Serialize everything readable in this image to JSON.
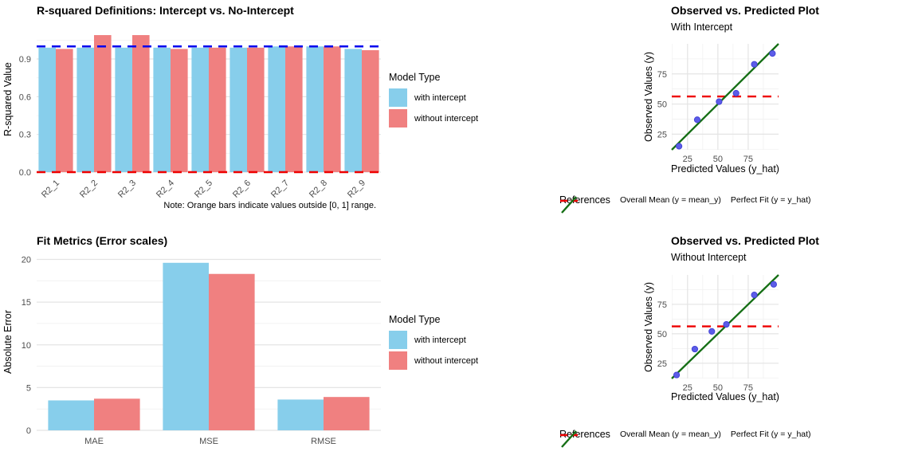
{
  "colors": {
    "with_intercept": "#87CEEB",
    "without_intercept": "#F08080",
    "ref_blue": "#0000EE",
    "ref_red": "#EE0000",
    "perfect_fit_green": "#146E14",
    "point_fill": "#5C5CE8",
    "point_stroke": "#4343D6",
    "grid_major": "#E4E4E4",
    "grid_minor": "#F1F1F1",
    "tick_text": "#4D4D4D"
  },
  "chart_data": [
    {
      "type": "bar",
      "title": "R-squared Definitions: Intercept vs. No-Intercept",
      "ylabel": "R-squared Value",
      "categories": [
        "R2_1",
        "R2_2",
        "R2_3",
        "R2_4",
        "R2_5",
        "R2_6",
        "R2_7",
        "R2_8",
        "R2_9"
      ],
      "series": [
        {
          "name": "with intercept",
          "color": "with_intercept",
          "values": [
            0.99,
            0.99,
            0.99,
            0.99,
            0.99,
            0.99,
            1.0,
            1.0,
            0.98
          ]
        },
        {
          "name": "without intercept",
          "color": "without_intercept",
          "values": [
            0.98,
            1.09,
            1.09,
            0.98,
            0.99,
            0.99,
            1.0,
            1.0,
            0.97
          ]
        }
      ],
      "yticks": [
        0,
        0.3,
        0.6,
        0.9
      ],
      "ytick_labels": [
        "0.0",
        "0.3",
        "0.6",
        "0.9"
      ],
      "ylim": [
        0,
        1.16
      ],
      "dodge": 0.9,
      "ref_lines": [
        {
          "y": 1.0,
          "color": "ref_blue"
        },
        {
          "y": 0.0,
          "color": "ref_red"
        }
      ],
      "legend": {
        "title": "Model Type"
      },
      "note": "Note: Orange bars indicate values outside [0, 1] range.",
      "grid": true,
      "legend_position": "right"
    },
    {
      "type": "bar",
      "title": "Fit Metrics (Error scales)",
      "ylabel": "Absolute Error",
      "categories": [
        "MAE",
        "MSE",
        "RMSE"
      ],
      "series": [
        {
          "name": "with intercept",
          "color": "with_intercept",
          "values": [
            3.5,
            19.6,
            3.6
          ]
        },
        {
          "name": "without intercept",
          "color": "without_intercept",
          "values": [
            3.7,
            18.3,
            3.9
          ]
        }
      ],
      "yticks": [
        0,
        5,
        10,
        15,
        20
      ],
      "ytick_labels": [
        "0",
        "5",
        "10",
        "15",
        "20"
      ],
      "ylim": [
        0,
        20.7
      ],
      "dodge": 0.8,
      "ref_lines": [],
      "legend": {
        "title": "Model Type"
      },
      "grid": true,
      "legend_position": "right"
    },
    {
      "type": "scatter",
      "title": "Observed vs. Predicted Plot",
      "subtitle": "With Intercept",
      "xlabel": "Predicted Values (y_hat)",
      "ylabel": "Observed Values (y)",
      "points": [
        [
          18,
          15
        ],
        [
          33,
          37
        ],
        [
          51,
          52
        ],
        [
          65,
          59
        ],
        [
          80,
          83
        ],
        [
          95,
          92
        ]
      ],
      "mean_y": 56.3,
      "xticks": [
        25,
        50,
        75
      ],
      "yticks": [
        25,
        50,
        75
      ],
      "xtick_labels": [
        "25",
        "50",
        "75"
      ],
      "ytick_labels": [
        "25",
        "50",
        "75"
      ],
      "xlim": [
        12,
        100
      ],
      "ylim": [
        12,
        100
      ],
      "legend": {
        "title": "References",
        "items": [
          "Overall Mean (y = mean_y)",
          "Perfect Fit (y = y_hat)"
        ]
      },
      "grid": true,
      "legend_position": "bottom"
    },
    {
      "type": "scatter",
      "title": "Observed vs. Predicted Plot",
      "subtitle": "Without Intercept",
      "xlabel": "Predicted Values (y_hat)",
      "ylabel": "Observed Values (y)",
      "points": [
        [
          16,
          15
        ],
        [
          31,
          37
        ],
        [
          45,
          52
        ],
        [
          57,
          58
        ],
        [
          80,
          83
        ],
        [
          96,
          92
        ]
      ],
      "mean_y": 56.3,
      "xticks": [
        25,
        50,
        75
      ],
      "yticks": [
        25,
        50,
        75
      ],
      "xtick_labels": [
        "25",
        "50",
        "75"
      ],
      "ytick_labels": [
        "25",
        "50",
        "75"
      ],
      "xlim": [
        12,
        100
      ],
      "ylim": [
        12,
        100
      ],
      "legend": {
        "title": "References",
        "items": [
          "Overall Mean (y = mean_y)",
          "Perfect Fit (y = y_hat)"
        ]
      },
      "grid": true,
      "legend_position": "bottom"
    }
  ]
}
